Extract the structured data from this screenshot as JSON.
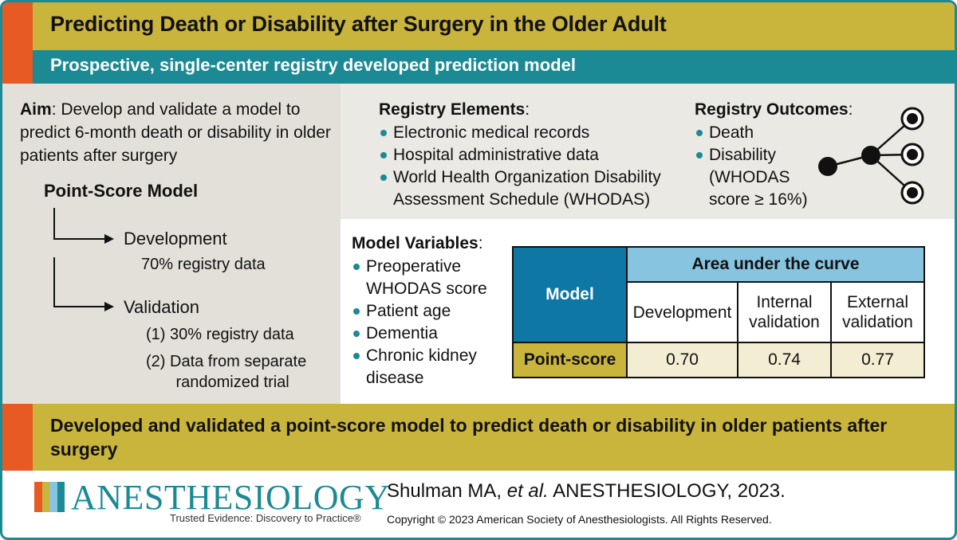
{
  "header": {
    "title": "Predicting Death or Disability after Surgery in the Older Adult",
    "subtitle": "Prospective, single-center registry developed prediction model"
  },
  "aim": {
    "label": "Aim",
    "text": ": Develop and validate a model to predict 6-month death or disability in older patients after surgery"
  },
  "point_score_model": {
    "title": "Point-Score Model",
    "development_label": "Development",
    "development_note": "70% registry data",
    "validation_label": "Validation",
    "validation_note_1": "(1) 30% registry data",
    "validation_note_2_line1": "(2) Data from separate",
    "validation_note_2_line2": "randomized trial"
  },
  "registry_elements": {
    "title": "Registry Elements",
    "items": [
      "Electronic medical records",
      "Hospital administrative data",
      "World Health Organization Disability Assessment Schedule (WHODAS)"
    ]
  },
  "registry_outcomes": {
    "title": "Registry Outcomes",
    "items": [
      "Death",
      "Disability (WHODAS score ≥ 16%)"
    ]
  },
  "model_variables": {
    "title": "Model Variables",
    "items": [
      "Preoperative WHODAS score",
      "Patient age",
      "Dementia",
      "Chronic kidney disease"
    ]
  },
  "auc_table": {
    "model_header": "Model",
    "group_header": "Area under the curve",
    "columns": [
      "Development",
      "Internal validation",
      "External validation"
    ],
    "row_label": "Point-score",
    "values": [
      "0.70",
      "0.74",
      "0.77"
    ]
  },
  "conclusion": "Developed and validated a point-score model to predict death or disability in older patients after surgery",
  "footer": {
    "journal": "ANESTHESIOLOGY",
    "tagline": "Trusted Evidence: Discovery to Practice®",
    "citation_authors": "Shulman MA,",
    "citation_etal": "et al.",
    "citation_journal": "ANESTHESIOLOGY, 2023.",
    "copyright": "Copyright © 2023 American Society of Anesthesiologists. All Rights Reserved."
  },
  "colors": {
    "gold": "#c9b43c",
    "teal": "#1b8a94",
    "orange": "#e85a24",
    "table_blue": "#0f77a3",
    "table_light_blue": "#86c4df"
  }
}
